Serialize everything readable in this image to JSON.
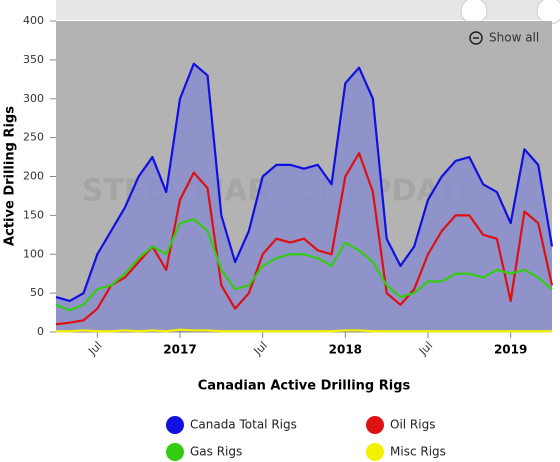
{
  "chart_data": {
    "type": "line",
    "title": "Canadian Active Drilling Rigs",
    "y_label": "Active Drilling Rigs",
    "watermark": "STEEL MARKET UPDATE",
    "zoom_button": "Show all",
    "x": [
      "2016-04",
      "2016-05",
      "2016-06",
      "2016-07",
      "2016-08",
      "2016-09",
      "2016-10",
      "2016-11",
      "2016-12",
      "2017-01",
      "2017-02",
      "2017-03",
      "2017-04",
      "2017-05",
      "2017-06",
      "2017-07",
      "2017-08",
      "2017-09",
      "2017-10",
      "2017-11",
      "2017-12",
      "2018-01",
      "2018-02",
      "2018-03",
      "2018-04",
      "2018-05",
      "2018-06",
      "2018-07",
      "2018-08",
      "2018-09",
      "2018-10",
      "2018-11",
      "2018-12",
      "2019-01",
      "2019-02",
      "2019-03",
      "2019-04"
    ],
    "xlim": [
      "2016-04",
      "2019-04"
    ],
    "xticks": [
      {
        "value": "2016-07",
        "label": "Jul"
      },
      {
        "value": "2017-01",
        "label": "2017"
      },
      {
        "value": "2017-07",
        "label": "Jul"
      },
      {
        "value": "2018-01",
        "label": "2018"
      },
      {
        "value": "2018-07",
        "label": "Jul"
      },
      {
        "value": "2019-01",
        "label": "2019"
      }
    ],
    "ylim": [
      0,
      400
    ],
    "yticks": [
      0,
      50,
      100,
      150,
      200,
      250,
      300,
      350,
      400
    ],
    "area_series": 0,
    "area_color": "#8a8dcc",
    "series": [
      {
        "name": "Canada Total Rigs",
        "color": "#1010e0",
        "values": [
          45,
          40,
          50,
          100,
          130,
          160,
          200,
          225,
          180,
          300,
          345,
          330,
          150,
          90,
          130,
          200,
          215,
          215,
          210,
          215,
          190,
          320,
          340,
          300,
          120,
          85,
          110,
          170,
          200,
          220,
          225,
          190,
          180,
          140,
          235,
          215,
          110
        ]
      },
      {
        "name": "Oil Rigs",
        "color": "#dd1111",
        "values": [
          10,
          12,
          15,
          30,
          60,
          70,
          90,
          110,
          80,
          170,
          205,
          185,
          60,
          30,
          50,
          100,
          120,
          115,
          120,
          105,
          100,
          200,
          230,
          180,
          50,
          35,
          55,
          100,
          130,
          150,
          150,
          125,
          120,
          40,
          155,
          140,
          60
        ]
      },
      {
        "name": "Gas Rigs",
        "color": "#33cc11",
        "values": [
          35,
          28,
          35,
          55,
          60,
          75,
          95,
          110,
          100,
          140,
          145,
          130,
          80,
          55,
          60,
          85,
          95,
          100,
          100,
          95,
          85,
          115,
          105,
          90,
          60,
          45,
          50,
          65,
          65,
          75,
          75,
          70,
          80,
          75,
          80,
          70,
          55
        ]
      },
      {
        "name": "Misc Rigs",
        "color": "#f2f200",
        "values": [
          1,
          1,
          2,
          1,
          1,
          2,
          1,
          2,
          1,
          3,
          2,
          2,
          1,
          1,
          1,
          1,
          1,
          1,
          1,
          1,
          1,
          2,
          2,
          1,
          1,
          1,
          1,
          1,
          1,
          1,
          1,
          1,
          1,
          1,
          1,
          1,
          1
        ]
      }
    ]
  }
}
